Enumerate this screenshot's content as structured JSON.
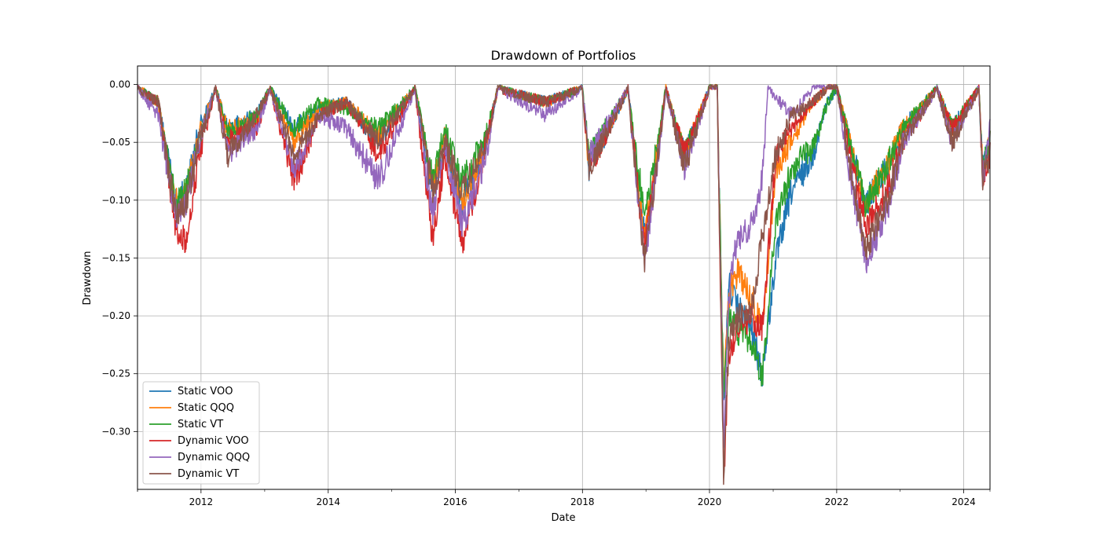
{
  "chart_data": {
    "type": "line",
    "title": "Drawdown of Portfolios",
    "xlabel": "Date",
    "ylabel": "Drawdown",
    "xlim": [
      "2011-01-01",
      "2024-05-31"
    ],
    "ylim": [
      -0.35,
      0.016
    ],
    "x_ticks": [
      "2012",
      "2014",
      "2016",
      "2018",
      "2020",
      "2022",
      "2024"
    ],
    "y_ticks": [
      "0.00",
      "−0.05",
      "−0.10",
      "−0.15",
      "−0.20",
      "−0.25",
      "−0.30"
    ],
    "grid": true,
    "legend_position": "lower-left",
    "series": [
      {
        "name": "Static VOO",
        "color": "#1f77b4",
        "points": [
          [
            "2011-01-03",
            0
          ],
          [
            "2011-05-01",
            -0.01
          ],
          [
            "2011-08-10",
            -0.09
          ],
          [
            "2011-10-04",
            -0.08
          ],
          [
            "2011-12-20",
            -0.03
          ],
          [
            "2012-03-25",
            0
          ],
          [
            "2012-06-01",
            -0.03
          ],
          [
            "2012-11-15",
            -0.02
          ],
          [
            "2013-02-01",
            0
          ],
          [
            "2013-06-20",
            -0.03
          ],
          [
            "2013-11-10",
            -0.015
          ],
          [
            "2014-04-15",
            -0.01
          ],
          [
            "2014-10-15",
            -0.04
          ],
          [
            "2015-05-15",
            0
          ],
          [
            "2015-08-25",
            -0.08
          ],
          [
            "2015-11-01",
            -0.04
          ],
          [
            "2016-02-11",
            -0.09
          ],
          [
            "2016-06-27",
            -0.04
          ],
          [
            "2016-09-01",
            0
          ],
          [
            "2017-06-01",
            -0.01
          ],
          [
            "2017-12-31",
            0
          ],
          [
            "2018-02-08",
            -0.06
          ],
          [
            "2018-09-20",
            0
          ],
          [
            "2018-12-24",
            -0.12
          ],
          [
            "2019-04-25",
            0
          ],
          [
            "2019-08-10",
            -0.05
          ],
          [
            "2019-12-31",
            0
          ],
          [
            "2020-02-15",
            0
          ],
          [
            "2020-03-23",
            -0.27
          ],
          [
            "2020-04-20",
            -0.16
          ],
          [
            "2020-06-08",
            -0.18
          ],
          [
            "2020-09-01",
            -0.2
          ],
          [
            "2020-10-30",
            -0.24
          ],
          [
            "2021-01-15",
            -0.14
          ],
          [
            "2021-04-15",
            -0.08
          ],
          [
            "2021-08-15",
            -0.05
          ],
          [
            "2021-11-10",
            -0.01
          ],
          [
            "2022-01-03",
            0
          ],
          [
            "2022-06-16",
            -0.09
          ],
          [
            "2022-10-12",
            -0.06
          ],
          [
            "2023-01-15",
            -0.03
          ],
          [
            "2023-07-31",
            0
          ],
          [
            "2023-10-27",
            -0.03
          ],
          [
            "2024-03-28",
            0
          ],
          [
            "2024-04-19",
            -0.06
          ],
          [
            "2024-05-31",
            -0.04
          ]
        ]
      },
      {
        "name": "Static QQQ",
        "color": "#ff7f0e",
        "points": [
          [
            "2011-01-03",
            0
          ],
          [
            "2011-05-01",
            -0.01
          ],
          [
            "2011-08-10",
            -0.09
          ],
          [
            "2011-10-04",
            -0.08
          ],
          [
            "2011-12-20",
            -0.035
          ],
          [
            "2012-03-25",
            0
          ],
          [
            "2012-06-01",
            -0.03
          ],
          [
            "2012-11-15",
            -0.025
          ],
          [
            "2013-02-01",
            0
          ],
          [
            "2013-06-20",
            -0.04
          ],
          [
            "2013-11-10",
            -0.015
          ],
          [
            "2014-04-15",
            -0.01
          ],
          [
            "2014-10-15",
            -0.035
          ],
          [
            "2015-05-15",
            0
          ],
          [
            "2015-08-25",
            -0.075
          ],
          [
            "2015-11-01",
            -0.035
          ],
          [
            "2016-02-11",
            -0.09
          ],
          [
            "2016-06-27",
            -0.04
          ],
          [
            "2016-09-01",
            0
          ],
          [
            "2017-06-01",
            -0.01
          ],
          [
            "2017-12-31",
            0
          ],
          [
            "2018-02-08",
            -0.06
          ],
          [
            "2018-09-20",
            0
          ],
          [
            "2018-12-24",
            -0.12
          ],
          [
            "2019-04-25",
            0
          ],
          [
            "2019-08-10",
            -0.05
          ],
          [
            "2019-12-31",
            0
          ],
          [
            "2020-02-15",
            0
          ],
          [
            "2020-03-23",
            -0.25
          ],
          [
            "2020-04-20",
            -0.17
          ],
          [
            "2020-06-08",
            -0.15
          ],
          [
            "2020-09-01",
            -0.17
          ],
          [
            "2020-10-30",
            -0.2
          ],
          [
            "2021-01-15",
            -0.06
          ],
          [
            "2021-04-15",
            -0.04
          ],
          [
            "2021-08-15",
            -0.01
          ],
          [
            "2021-11-10",
            0
          ],
          [
            "2022-01-03",
            0
          ],
          [
            "2022-06-16",
            -0.09
          ],
          [
            "2022-10-12",
            -0.06
          ],
          [
            "2023-01-15",
            -0.03
          ],
          [
            "2023-07-31",
            0
          ],
          [
            "2023-10-27",
            -0.03
          ],
          [
            "2024-03-28",
            0
          ],
          [
            "2024-04-19",
            -0.06
          ],
          [
            "2024-05-31",
            -0.04
          ]
        ]
      },
      {
        "name": "Static VT",
        "color": "#2ca02c",
        "points": [
          [
            "2011-01-03",
            0
          ],
          [
            "2011-05-01",
            -0.01
          ],
          [
            "2011-08-10",
            -0.09
          ],
          [
            "2011-10-04",
            -0.08
          ],
          [
            "2011-12-20",
            -0.04
          ],
          [
            "2012-03-25",
            0
          ],
          [
            "2012-06-01",
            -0.035
          ],
          [
            "2012-11-15",
            -0.02
          ],
          [
            "2013-02-01",
            0
          ],
          [
            "2013-06-20",
            -0.03
          ],
          [
            "2013-11-10",
            -0.01
          ],
          [
            "2014-04-15",
            -0.015
          ],
          [
            "2014-10-15",
            -0.03
          ],
          [
            "2015-05-15",
            0
          ],
          [
            "2015-08-25",
            -0.07
          ],
          [
            "2015-11-01",
            -0.03
          ],
          [
            "2016-02-11",
            -0.07
          ],
          [
            "2016-06-27",
            -0.035
          ],
          [
            "2016-09-01",
            0
          ],
          [
            "2017-06-01",
            -0.01
          ],
          [
            "2017-12-31",
            0
          ],
          [
            "2018-02-08",
            -0.05
          ],
          [
            "2018-09-20",
            0
          ],
          [
            "2018-12-24",
            -0.1
          ],
          [
            "2019-04-25",
            0
          ],
          [
            "2019-08-10",
            -0.05
          ],
          [
            "2019-12-31",
            0
          ],
          [
            "2020-02-15",
            0
          ],
          [
            "2020-03-23",
            -0.26
          ],
          [
            "2020-04-20",
            -0.19
          ],
          [
            "2020-06-08",
            -0.2
          ],
          [
            "2020-09-01",
            -0.21
          ],
          [
            "2020-10-30",
            -0.24
          ],
          [
            "2021-01-15",
            -0.11
          ],
          [
            "2021-04-15",
            -0.06
          ],
          [
            "2021-08-15",
            -0.045
          ],
          [
            "2021-11-10",
            -0.01
          ],
          [
            "2022-01-03",
            0
          ],
          [
            "2022-06-16",
            -0.09
          ],
          [
            "2022-10-12",
            -0.06
          ],
          [
            "2023-01-15",
            -0.03
          ],
          [
            "2023-07-31",
            0
          ],
          [
            "2023-10-27",
            -0.03
          ],
          [
            "2024-03-28",
            0
          ],
          [
            "2024-04-19",
            -0.06
          ],
          [
            "2024-05-31",
            -0.04
          ]
        ]
      },
      {
        "name": "Dynamic VOO",
        "color": "#d62728",
        "points": [
          [
            "2011-01-03",
            0
          ],
          [
            "2011-05-01",
            -0.01
          ],
          [
            "2011-08-10",
            -0.11
          ],
          [
            "2011-10-04",
            -0.125
          ],
          [
            "2011-12-20",
            -0.05
          ],
          [
            "2012-03-25",
            0
          ],
          [
            "2012-06-01",
            -0.04
          ],
          [
            "2012-11-15",
            -0.03
          ],
          [
            "2013-02-01",
            0
          ],
          [
            "2013-06-20",
            -0.07
          ],
          [
            "2013-11-10",
            -0.02
          ],
          [
            "2014-04-15",
            -0.01
          ],
          [
            "2014-10-15",
            -0.05
          ],
          [
            "2015-05-15",
            0
          ],
          [
            "2015-08-25",
            -0.12
          ],
          [
            "2015-11-01",
            -0.05
          ],
          [
            "2016-02-11",
            -0.125
          ],
          [
            "2016-06-27",
            -0.04
          ],
          [
            "2016-09-01",
            0
          ],
          [
            "2017-06-01",
            -0.01
          ],
          [
            "2017-12-31",
            0
          ],
          [
            "2018-02-08",
            -0.06
          ],
          [
            "2018-09-20",
            0
          ],
          [
            "2018-12-24",
            -0.13
          ],
          [
            "2019-04-25",
            0
          ],
          [
            "2019-08-10",
            -0.05
          ],
          [
            "2019-12-31",
            0
          ],
          [
            "2020-02-15",
            0
          ],
          [
            "2020-03-23",
            -0.33
          ],
          [
            "2020-04-20",
            -0.22
          ],
          [
            "2020-06-08",
            -0.2
          ],
          [
            "2020-09-01",
            -0.19
          ],
          [
            "2020-10-30",
            -0.2
          ],
          [
            "2021-01-15",
            -0.05
          ],
          [
            "2021-04-15",
            -0.03
          ],
          [
            "2021-08-15",
            -0.01
          ],
          [
            "2021-11-10",
            0
          ],
          [
            "2022-01-03",
            0
          ],
          [
            "2022-06-16",
            -0.11
          ],
          [
            "2022-10-12",
            -0.08
          ],
          [
            "2023-01-15",
            -0.04
          ],
          [
            "2023-07-31",
            0
          ],
          [
            "2023-10-27",
            -0.03
          ],
          [
            "2024-03-28",
            0
          ],
          [
            "2024-04-19",
            -0.07
          ],
          [
            "2024-05-31",
            -0.05
          ]
        ]
      },
      {
        "name": "Dynamic QQQ",
        "color": "#9467bd",
        "points": [
          [
            "2011-01-03",
            0
          ],
          [
            "2011-05-01",
            -0.02
          ],
          [
            "2011-08-10",
            -0.1
          ],
          [
            "2011-10-04",
            -0.09
          ],
          [
            "2011-12-20",
            -0.04
          ],
          [
            "2012-03-25",
            0
          ],
          [
            "2012-06-01",
            -0.05
          ],
          [
            "2012-11-15",
            -0.03
          ],
          [
            "2013-02-01",
            0
          ],
          [
            "2013-06-20",
            -0.06
          ],
          [
            "2013-11-10",
            -0.02
          ],
          [
            "2014-04-15",
            -0.03
          ],
          [
            "2014-10-15",
            -0.07
          ],
          [
            "2015-05-15",
            0
          ],
          [
            "2015-08-25",
            -0.1
          ],
          [
            "2015-11-01",
            -0.04
          ],
          [
            "2016-02-11",
            -0.11
          ],
          [
            "2016-06-27",
            -0.05
          ],
          [
            "2016-09-01",
            0
          ],
          [
            "2017-06-01",
            -0.02
          ],
          [
            "2017-12-31",
            0
          ],
          [
            "2018-02-08",
            -0.05
          ],
          [
            "2018-09-20",
            0
          ],
          [
            "2018-12-24",
            -0.14
          ],
          [
            "2019-04-25",
            0
          ],
          [
            "2019-08-10",
            -0.06
          ],
          [
            "2019-12-31",
            0
          ],
          [
            "2020-02-15",
            0
          ],
          [
            "2020-03-23",
            -0.3
          ],
          [
            "2020-04-20",
            -0.17
          ],
          [
            "2020-06-08",
            -0.12
          ],
          [
            "2020-09-01",
            -0.11
          ],
          [
            "2020-10-30",
            -0.07
          ],
          [
            "2020-12-01",
            0
          ],
          [
            "2021-04-15",
            -0.02
          ],
          [
            "2021-08-15",
            0
          ],
          [
            "2021-11-10",
            0
          ],
          [
            "2022-01-03",
            0
          ],
          [
            "2022-06-16",
            -0.14
          ],
          [
            "2022-10-12",
            -0.1
          ],
          [
            "2023-01-15",
            -0.04
          ],
          [
            "2023-07-31",
            0
          ],
          [
            "2023-10-27",
            -0.04
          ],
          [
            "2024-03-28",
            0
          ],
          [
            "2024-04-19",
            -0.07
          ],
          [
            "2024-05-31",
            -0.03
          ]
        ]
      },
      {
        "name": "Dynamic VT",
        "color": "#8c564b",
        "points": [
          [
            "2011-01-03",
            0
          ],
          [
            "2011-05-01",
            -0.01
          ],
          [
            "2011-08-10",
            -0.1
          ],
          [
            "2011-10-04",
            -0.09
          ],
          [
            "2011-12-20",
            -0.04
          ],
          [
            "2012-03-25",
            0
          ],
          [
            "2012-06-01",
            -0.05
          ],
          [
            "2012-11-15",
            -0.02
          ],
          [
            "2013-02-01",
            0
          ],
          [
            "2013-06-20",
            -0.05
          ],
          [
            "2013-11-10",
            -0.02
          ],
          [
            "2014-04-15",
            -0.01
          ],
          [
            "2014-10-15",
            -0.04
          ],
          [
            "2015-05-15",
            0
          ],
          [
            "2015-08-25",
            -0.08
          ],
          [
            "2015-11-01",
            -0.04
          ],
          [
            "2016-02-11",
            -0.08
          ],
          [
            "2016-06-27",
            -0.04
          ],
          [
            "2016-09-01",
            0
          ],
          [
            "2017-06-01",
            -0.01
          ],
          [
            "2017-12-31",
            0
          ],
          [
            "2018-02-08",
            -0.06
          ],
          [
            "2018-09-20",
            0
          ],
          [
            "2018-12-24",
            -0.14
          ],
          [
            "2019-04-25",
            0
          ],
          [
            "2019-08-10",
            -0.06
          ],
          [
            "2019-12-31",
            0
          ],
          [
            "2020-02-15",
            0
          ],
          [
            "2020-03-23",
            -0.33
          ],
          [
            "2020-04-20",
            -0.21
          ],
          [
            "2020-06-08",
            -0.19
          ],
          [
            "2020-09-01",
            -0.18
          ],
          [
            "2020-10-30",
            -0.12
          ],
          [
            "2021-01-15",
            -0.05
          ],
          [
            "2021-04-15",
            -0.02
          ],
          [
            "2021-08-15",
            -0.01
          ],
          [
            "2021-11-10",
            0
          ],
          [
            "2022-01-03",
            0
          ],
          [
            "2022-06-16",
            -0.13
          ],
          [
            "2022-10-12",
            -0.09
          ],
          [
            "2023-01-15",
            -0.04
          ],
          [
            "2023-07-31",
            0
          ],
          [
            "2023-10-27",
            -0.04
          ],
          [
            "2024-03-28",
            0
          ],
          [
            "2024-04-19",
            -0.07
          ],
          [
            "2024-05-31",
            -0.05
          ]
        ]
      }
    ]
  }
}
